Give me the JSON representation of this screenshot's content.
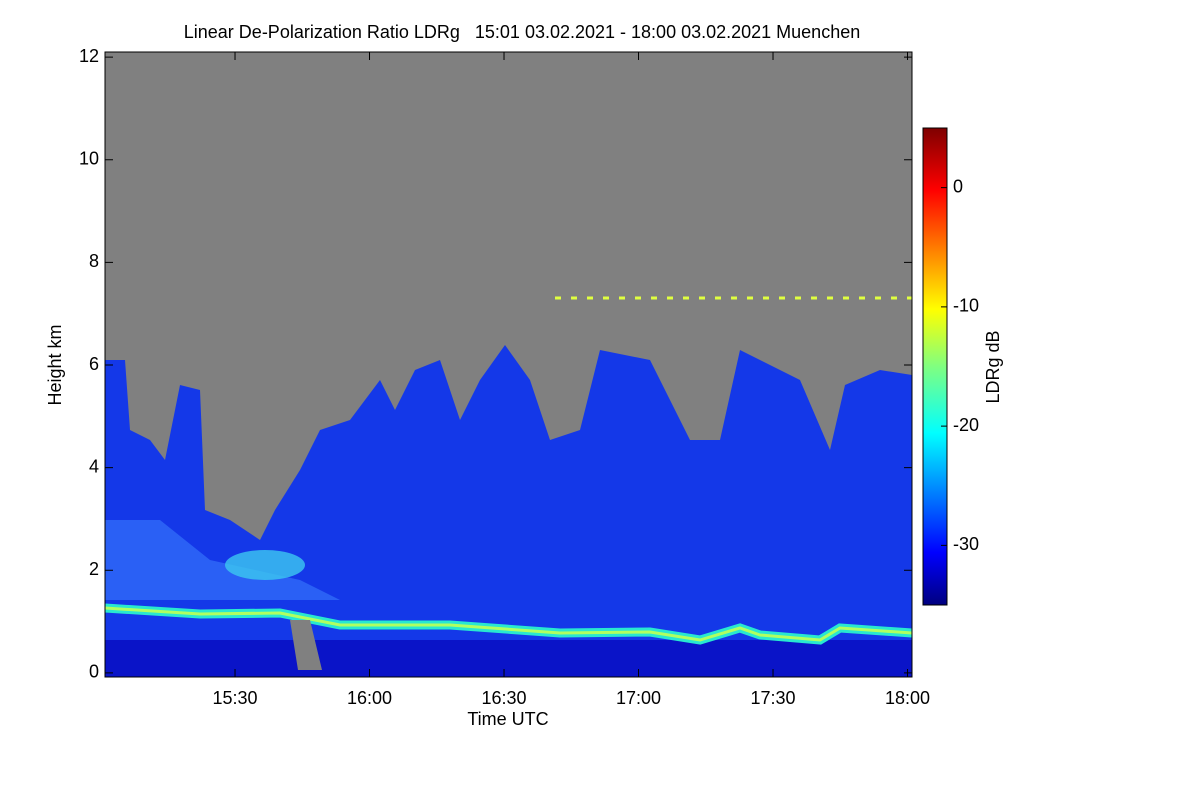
{
  "chart_data": {
    "type": "heatmap",
    "title": "Linear De-Polarization Ratio LDRg   15:01 03.02.2021 - 18:00 03.02.2021 Muenchen",
    "x_label": "Time UTC",
    "y_label": "Height km",
    "xlim": [
      901,
      1081
    ],
    "xticks": [
      {
        "value": 930,
        "label": "15:30"
      },
      {
        "value": 960,
        "label": "16:00"
      },
      {
        "value": 990,
        "label": "16:30"
      },
      {
        "value": 1020,
        "label": "17:00"
      },
      {
        "value": 1050,
        "label": "17:30"
      },
      {
        "value": 1080,
        "label": "18:00"
      }
    ],
    "ylim": [
      -0.08,
      12.1
    ],
    "yticks": [
      0,
      2,
      4,
      6,
      8,
      10,
      12
    ],
    "colorbar": {
      "label": "LDRg dB",
      "lim": [
        -35,
        5
      ],
      "ticks": [
        0,
        -10,
        -20,
        -30
      ]
    }
  }
}
